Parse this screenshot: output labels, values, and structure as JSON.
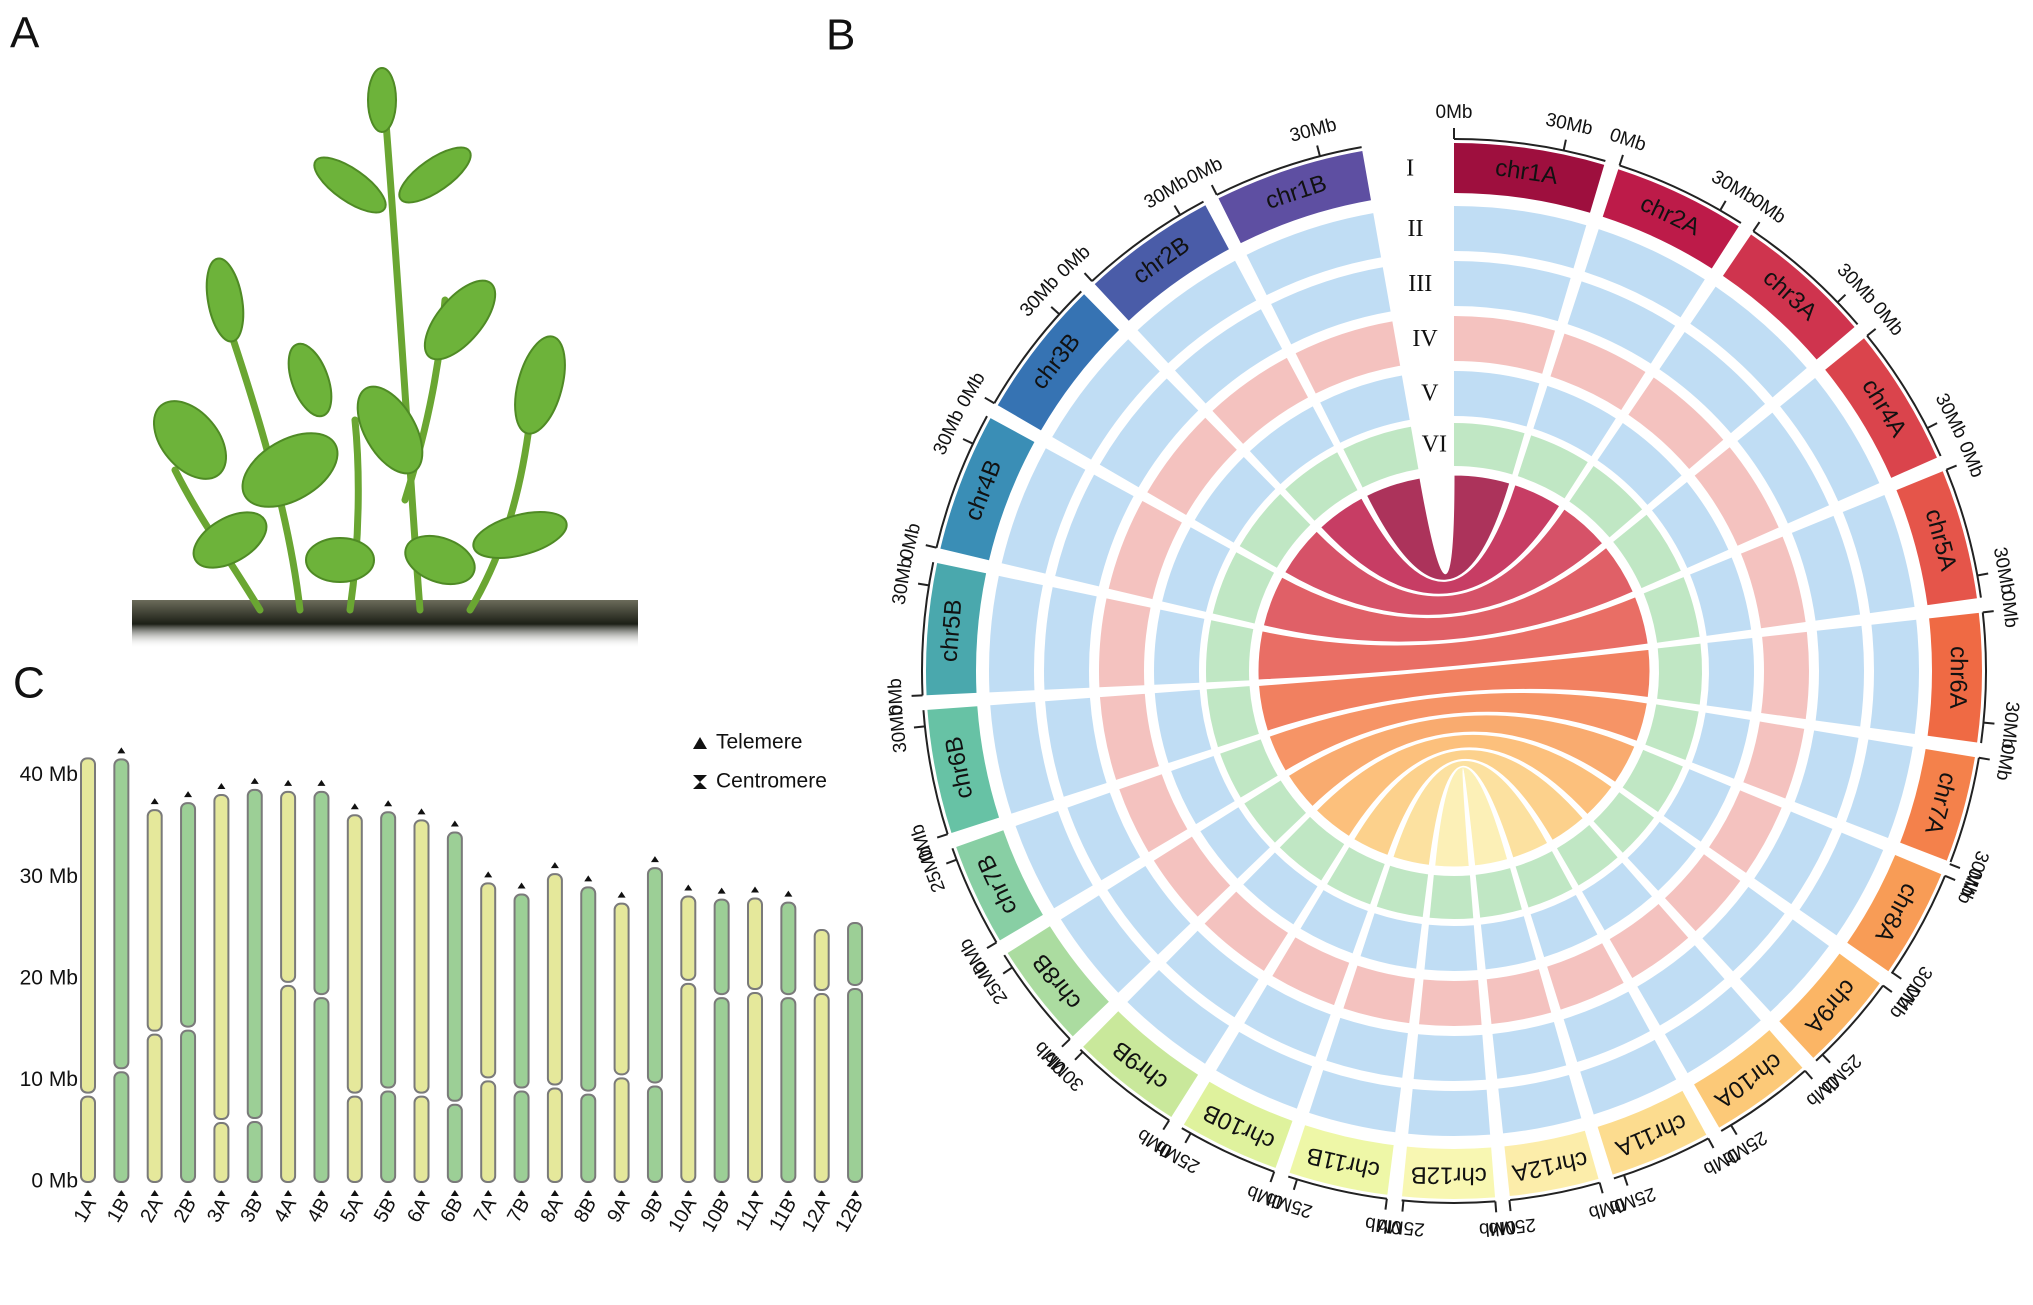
{
  "panel_labels": [
    "A",
    "B",
    "C"
  ],
  "chart_data": [
    {
      "type": "circos",
      "tracks": [
        {
          "label": "I"
        },
        {
          "label": "II",
          "color": "#2f8fdc"
        },
        {
          "label": "III",
          "color": "#2f8fdc"
        },
        {
          "label": "IV",
          "color": "#d9342b"
        },
        {
          "label": "V",
          "color": "#2f8fdc"
        },
        {
          "label": "VI",
          "color": "#2fae3c"
        }
      ],
      "chromosomes": [
        {
          "name": "chr1A",
          "length": 41.7,
          "color": "#9e0f3e",
          "ticks": [
            {
              "value": 0,
              "label": "0Mb"
            },
            {
              "value": 30,
              "label": "30Mb"
            }
          ]
        },
        {
          "name": "chr2A",
          "length": 36.6,
          "color": "#bd1b49",
          "ticks": [
            {
              "value": 0,
              "label": "0Mb"
            },
            {
              "value": 30,
              "label": "30Mb"
            }
          ]
        },
        {
          "name": "chr3A",
          "length": 38.1,
          "color": "#cf344e",
          "ticks": [
            {
              "value": 0,
              "label": "0Mb"
            },
            {
              "value": 30,
              "label": "30Mb"
            }
          ]
        },
        {
          "name": "chr4A",
          "length": 38.4,
          "color": "#da444c",
          "ticks": [
            {
              "value": 0,
              "label": "0Mb"
            },
            {
              "value": 30,
              "label": "30Mb"
            }
          ]
        },
        {
          "name": "chr5A",
          "length": 36.1,
          "color": "#e5554a",
          "ticks": [
            {
              "value": 0,
              "label": "0Mb"
            },
            {
              "value": 30,
              "label": "30Mb"
            }
          ]
        },
        {
          "name": "chr6A",
          "length": 35.6,
          "color": "#ef6a44",
          "ticks": [
            {
              "value": 0,
              "label": "0Mb"
            },
            {
              "value": 30,
              "label": "30Mb"
            }
          ]
        },
        {
          "name": "chr7A",
          "length": 29.4,
          "color": "#f4814b",
          "ticks": [
            {
              "value": 0,
              "label": "0Mb"
            },
            {
              "value": 30,
              "label": "30Mb"
            }
          ]
        },
        {
          "name": "chr8A",
          "length": 30.3,
          "color": "#f89c56",
          "ticks": [
            {
              "value": 0,
              "label": "0Mb"
            },
            {
              "value": 30,
              "label": "30Mb"
            }
          ]
        },
        {
          "name": "chr9A",
          "length": 27.4,
          "color": "#fbb565",
          "ticks": [
            {
              "value": 0,
              "label": "0Mb"
            },
            {
              "value": 25,
              "label": "25Mb"
            }
          ]
        },
        {
          "name": "chr10A",
          "length": 28.1,
          "color": "#fcc978",
          "ticks": [
            {
              "value": 0,
              "label": "0Mb"
            },
            {
              "value": 25,
              "label": "25Mb"
            }
          ]
        },
        {
          "name": "chr11A",
          "length": 27.9,
          "color": "#fcdc8f",
          "ticks": [
            {
              "value": 0,
              "label": "0Mb"
            },
            {
              "value": 25,
              "label": "25Mb"
            }
          ]
        },
        {
          "name": "chr12A",
          "length": 24.8,
          "color": "#fcedaa",
          "ticks": [
            {
              "value": 0,
              "label": "0Mb"
            },
            {
              "value": 25,
              "label": "25Mb"
            }
          ]
        },
        {
          "name": "chr12B",
          "length": 25.5,
          "color": "#f8f7b2",
          "ticks": [
            {
              "value": 0,
              "label": "0Mb"
            },
            {
              "value": 25,
              "label": "25Mb"
            }
          ]
        },
        {
          "name": "chr11B",
          "length": 27.5,
          "color": "#eef7a7",
          "ticks": [
            {
              "value": 0,
              "label": "0Mb"
            },
            {
              "value": 25,
              "label": "25Mb"
            }
          ]
        },
        {
          "name": "chr10B",
          "length": 27.8,
          "color": "#dff29d",
          "ticks": [
            {
              "value": 0,
              "label": "0Mb"
            },
            {
              "value": 25,
              "label": "25Mb"
            }
          ]
        },
        {
          "name": "chr9B",
          "length": 30.9,
          "color": "#c9e89b",
          "ticks": [
            {
              "value": 0,
              "label": "0Mb"
            },
            {
              "value": 30,
              "label": "30Mb"
            }
          ]
        },
        {
          "name": "chr8B",
          "length": 29.0,
          "color": "#abdca0",
          "ticks": [
            {
              "value": 0,
              "label": "0Mb"
            },
            {
              "value": 25,
              "label": "25Mb"
            }
          ]
        },
        {
          "name": "chr7B",
          "length": 28.3,
          "color": "#88cfa4",
          "ticks": [
            {
              "value": 0,
              "label": "0Mb"
            },
            {
              "value": 25,
              "label": "25Mb"
            }
          ]
        },
        {
          "name": "chr6B",
          "length": 34.4,
          "color": "#67c2a5",
          "ticks": [
            {
              "value": 0,
              "label": "0Mb"
            },
            {
              "value": 30,
              "label": "30Mb"
            }
          ]
        },
        {
          "name": "chr5B",
          "length": 36.4,
          "color": "#4aa8ad",
          "ticks": [
            {
              "value": 0,
              "label": "0Mb"
            },
            {
              "value": 30,
              "label": "30Mb"
            }
          ]
        },
        {
          "name": "chr4B",
          "length": 38.4,
          "color": "#3a8eb6",
          "ticks": [
            {
              "value": 0,
              "label": "0Mb"
            },
            {
              "value": 30,
              "label": "30Mb"
            }
          ]
        },
        {
          "name": "chr3B",
          "length": 38.6,
          "color": "#3673b3",
          "ticks": [
            {
              "value": 0,
              "label": "0Mb"
            },
            {
              "value": 30,
              "label": "30Mb"
            }
          ]
        },
        {
          "name": "chr2B",
          "length": 37.3,
          "color": "#4a5ca8",
          "ticks": [
            {
              "value": 0,
              "label": "0Mb"
            },
            {
              "value": 30,
              "label": "30Mb"
            }
          ]
        },
        {
          "name": "chr1B",
          "length": 41.6,
          "color": "#5e4fa2",
          "ticks": [
            {
              "value": 0,
              "label": "0Mb"
            },
            {
              "value": 30,
              "label": "30Mb"
            }
          ]
        }
      ]
    },
    {
      "type": "ideogram",
      "categories": [
        "1A",
        "1B",
        "2A",
        "2B",
        "3A",
        "3B",
        "4A",
        "4B",
        "5A",
        "5B",
        "6A",
        "6B",
        "7A",
        "7B",
        "8A",
        "8B",
        "9A",
        "9B",
        "10A",
        "10B",
        "11A",
        "11B",
        "12A",
        "12B"
      ],
      "values": [
        41.7,
        41.6,
        36.6,
        37.3,
        38.1,
        38.6,
        38.4,
        38.4,
        36.1,
        36.4,
        35.6,
        34.4,
        29.4,
        28.3,
        30.3,
        29.0,
        27.4,
        30.9,
        28.1,
        27.8,
        27.9,
        27.5,
        24.8,
        25.5
      ],
      "centromeres": [
        8.6,
        11.0,
        14.7,
        15.1,
        6.0,
        6.1,
        19.5,
        18.3,
        8.6,
        9.1,
        8.6,
        7.8,
        10.1,
        9.1,
        9.4,
        8.8,
        10.4,
        9.6,
        19.7,
        18.3,
        18.8,
        18.3,
        18.7,
        19.2
      ],
      "telomere_top": [
        false,
        true,
        true,
        true,
        true,
        true,
        true,
        true,
        true,
        true,
        true,
        true,
        true,
        true,
        true,
        true,
        true,
        true,
        true,
        true,
        true,
        true,
        false,
        false
      ],
      "colors": [
        "#e5e89b",
        "#9ccf96"
      ],
      "ylim": [
        0,
        44
      ],
      "yticks": [
        {
          "value": 0,
          "label": "0 Mb"
        },
        {
          "value": 10,
          "label": "10 Mb"
        },
        {
          "value": 20,
          "label": "20 Mb"
        },
        {
          "value": 30,
          "label": "30 Mb"
        },
        {
          "value": 40,
          "label": "40 Mb"
        }
      ],
      "legend": [
        "Telemere",
        "Centromere"
      ]
    }
  ]
}
